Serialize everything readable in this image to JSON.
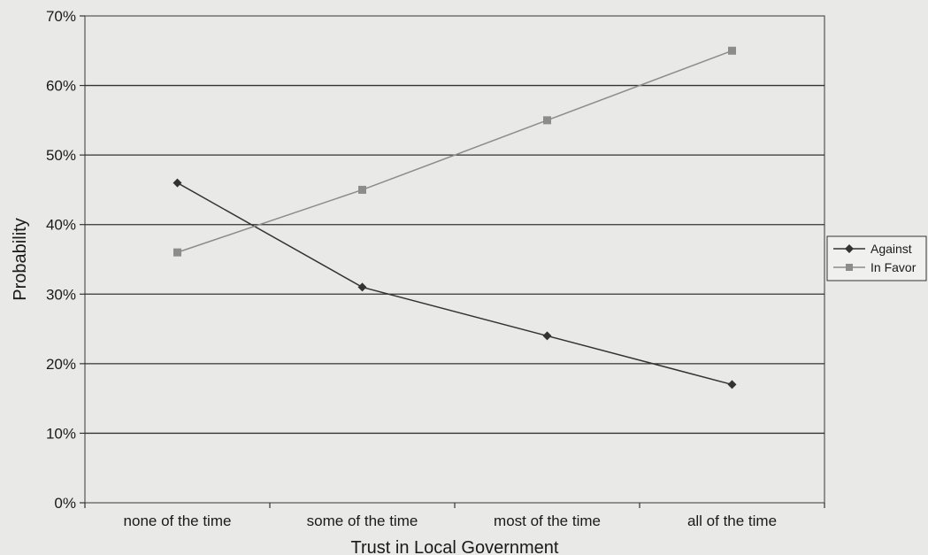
{
  "chart_data": {
    "type": "line",
    "title": "",
    "xlabel": "Trust in Local Government",
    "ylabel": "Probability",
    "categories": [
      "none of the time",
      "some of the time",
      "most of the time",
      "all of the time"
    ],
    "ylim": [
      0,
      70
    ],
    "yticks": [
      0,
      10,
      20,
      30,
      40,
      50,
      60,
      70
    ],
    "ytick_suffix": "%",
    "grid": true,
    "legend_position": "right",
    "series": [
      {
        "name": "Against",
        "values": [
          46,
          31,
          24,
          17
        ],
        "marker": "diamond",
        "color": "#333333"
      },
      {
        "name": "In Favor",
        "values": [
          36,
          45,
          55,
          65
        ],
        "marker": "square",
        "color": "#8c8c8c"
      }
    ]
  }
}
